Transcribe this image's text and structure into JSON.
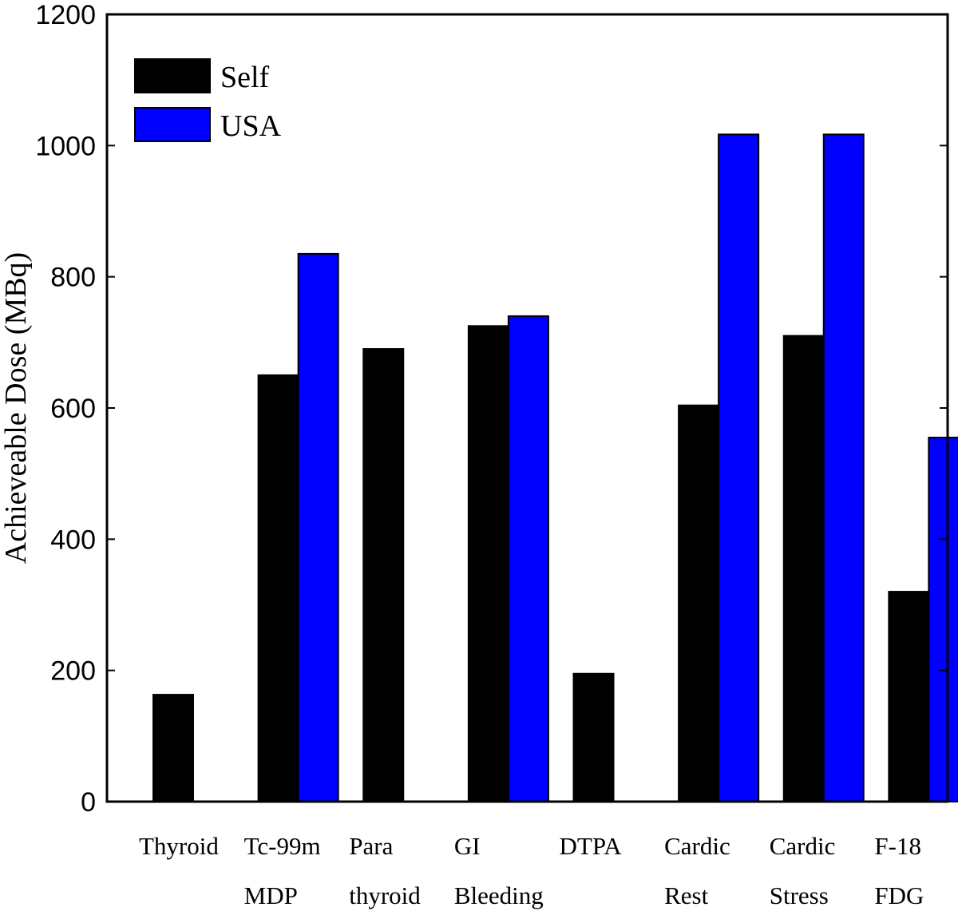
{
  "chart_data": {
    "type": "bar",
    "title": "",
    "xlabel": "",
    "ylabel": "Achieveable Dose (MBq)",
    "ylim": [
      0,
      1200
    ],
    "yticks": [
      0,
      200,
      400,
      600,
      800,
      1000,
      1200
    ],
    "yticks_text": [
      "0",
      "200",
      "400",
      "600",
      "800",
      "1000",
      "1200"
    ],
    "categories": [
      [
        "Thyroid"
      ],
      [
        "Tc-99m",
        "MDP"
      ],
      [
        "Para",
        "thyroid"
      ],
      [
        "GI",
        "Bleeding"
      ],
      [
        "DTPA"
      ],
      [
        "Cardic",
        "Rest"
      ],
      [
        "Cardic",
        "Stress"
      ],
      [
        "F-18",
        "FDG"
      ]
    ],
    "series": [
      {
        "name": "Self",
        "color": "#000000",
        "values": [
          163,
          650,
          690,
          725,
          195,
          604,
          710,
          320
        ]
      },
      {
        "name": "USA",
        "color": "#0000ff",
        "values": [
          null,
          835,
          null,
          740,
          null,
          1017,
          1017,
          555
        ]
      }
    ],
    "legend": {
      "position": "top-left"
    },
    "grid": false
  }
}
